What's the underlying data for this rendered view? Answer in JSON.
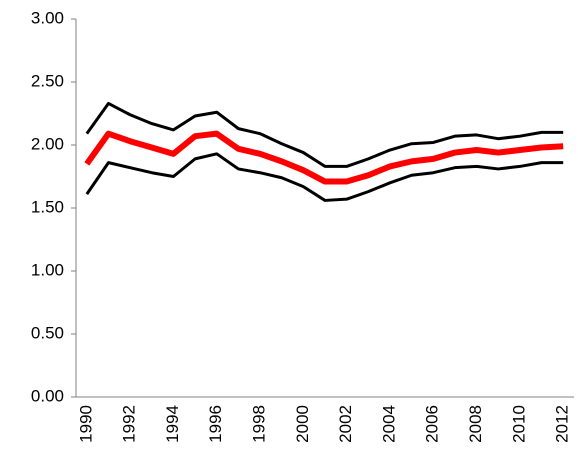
{
  "chart_data": {
    "type": "line",
    "categories": [
      1990,
      null,
      1992,
      null,
      1994,
      null,
      1996,
      null,
      1998,
      null,
      2000,
      null,
      2002,
      null,
      2004,
      null,
      2006,
      null,
      2008,
      null,
      2010,
      null,
      2012
    ],
    "series": [
      {
        "color": "#000000",
        "width": 3,
        "values": [
          2.09,
          2.33,
          2.24,
          2.17,
          2.12,
          2.23,
          2.26,
          2.13,
          2.09,
          2.01,
          1.94,
          1.83,
          1.83,
          1.89,
          1.96,
          2.01,
          2.02,
          2.07,
          2.08,
          2.05,
          2.07,
          2.1,
          2.1
        ]
      },
      {
        "color": "#ff0000",
        "width": 6,
        "values": [
          1.85,
          2.09,
          2.03,
          1.98,
          1.93,
          2.07,
          2.09,
          1.97,
          1.93,
          1.87,
          1.8,
          1.71,
          1.71,
          1.76,
          1.83,
          1.87,
          1.89,
          1.94,
          1.96,
          1.94,
          1.96,
          1.98,
          1.99
        ]
      },
      {
        "color": "#000000",
        "width": 3,
        "values": [
          1.61,
          1.86,
          1.82,
          1.78,
          1.75,
          1.89,
          1.93,
          1.81,
          1.78,
          1.74,
          1.67,
          1.56,
          1.57,
          1.63,
          1.7,
          1.76,
          1.78,
          1.82,
          1.83,
          1.81,
          1.83,
          1.86,
          1.86
        ]
      }
    ],
    "ylim": [
      0,
      3
    ],
    "yticks": [
      {
        "value": 0,
        "label": "0.00"
      },
      {
        "value": 0.5,
        "label": "0.50"
      },
      {
        "value": 1,
        "label": "1.00"
      },
      {
        "value": 1.5,
        "label": "1.50"
      },
      {
        "value": 2,
        "label": "2.00"
      },
      {
        "value": 2.5,
        "label": "2.50"
      },
      {
        "value": 3,
        "label": "3.00"
      }
    ]
  }
}
